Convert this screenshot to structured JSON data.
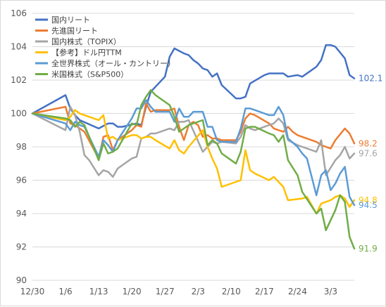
{
  "chart_data": {
    "type": "line",
    "x_ticks": [
      "12/30",
      "1/6",
      "1/13",
      "1/20",
      "1/27",
      "2/3",
      "2/10",
      "2/17",
      "2/24",
      "3/3"
    ],
    "ylim": [
      90,
      106
    ],
    "y_ticks": [
      90,
      92,
      94,
      96,
      98,
      100,
      102,
      104,
      106
    ],
    "grid": "horizontal",
    "legend_position": "top-left",
    "series": [
      {
        "name": "国内リート",
        "color": "#4472c4",
        "end_label": "102.1",
        "points": [
          [
            0,
            100
          ],
          [
            7,
            101.1
          ],
          [
            8,
            100.3
          ],
          [
            9,
            99.9
          ],
          [
            10,
            99.6
          ],
          [
            14,
            99.1
          ],
          [
            16,
            99.4
          ],
          [
            17,
            99.4
          ],
          [
            18,
            99.2
          ],
          [
            19,
            99.2
          ],
          [
            22,
            99.4
          ],
          [
            23,
            99.3
          ],
          [
            24,
            100.4
          ],
          [
            25,
            101.3
          ],
          [
            28,
            102.2
          ],
          [
            29,
            103.4
          ],
          [
            30,
            103.9
          ],
          [
            32,
            103.6
          ],
          [
            33,
            103.5
          ],
          [
            34,
            103.2
          ],
          [
            35,
            103.0
          ],
          [
            36,
            102.7
          ],
          [
            37,
            102.6
          ],
          [
            38,
            102.2
          ],
          [
            39,
            102.4
          ],
          [
            40,
            101.7
          ],
          [
            43,
            100.9
          ],
          [
            44,
            100.9
          ],
          [
            45,
            101.0
          ],
          [
            46,
            101.8
          ],
          [
            49,
            102.3
          ],
          [
            50,
            102.4
          ],
          [
            52,
            102.4
          ],
          [
            53,
            102.4
          ],
          [
            54,
            102.2
          ],
          [
            56,
            102.3
          ],
          [
            57,
            102.2
          ],
          [
            60,
            102.8
          ],
          [
            61,
            103.2
          ],
          [
            62,
            104.1
          ],
          [
            63,
            104.1
          ],
          [
            64,
            104.0
          ],
          [
            66,
            103.3
          ],
          [
            67,
            102.3
          ],
          [
            68,
            102.1
          ]
        ]
      },
      {
        "name": "先進国リート",
        "color": "#ed7d31",
        "end_label": "98.2",
        "points": [
          [
            0,
            100
          ],
          [
            7,
            100.4
          ],
          [
            8,
            99.4
          ],
          [
            9,
            99.3
          ],
          [
            10,
            99.1
          ],
          [
            11,
            98.9
          ],
          [
            14,
            97.3
          ],
          [
            15,
            98.6
          ],
          [
            16,
            98.7
          ],
          [
            17,
            97.8
          ],
          [
            18,
            98.4
          ],
          [
            21,
            99.0
          ],
          [
            22,
            99.3
          ],
          [
            23,
            99.2
          ],
          [
            24,
            100.6
          ],
          [
            25,
            100.1
          ],
          [
            26,
            100.2
          ],
          [
            29,
            100.2
          ],
          [
            30,
            100.3
          ],
          [
            31,
            99.2
          ],
          [
            32,
            98.4
          ],
          [
            33,
            99.3
          ],
          [
            34,
            99.5
          ],
          [
            35,
            99.3
          ],
          [
            36,
            98.6
          ],
          [
            37,
            98.7
          ],
          [
            38,
            98.5
          ],
          [
            39,
            98.5
          ],
          [
            40,
            98.4
          ],
          [
            43,
            98.4
          ],
          [
            44,
            98.9
          ],
          [
            45,
            99.7
          ],
          [
            46,
            100.0
          ],
          [
            47,
            99.9
          ],
          [
            50,
            99.4
          ],
          [
            51,
            99.1
          ],
          [
            52,
            99.0
          ],
          [
            53,
            98.9
          ],
          [
            54,
            99.2
          ],
          [
            55,
            98.9
          ],
          [
            56,
            98.7
          ],
          [
            57,
            98.6
          ],
          [
            60,
            98.3
          ],
          [
            61,
            98.1
          ],
          [
            62,
            98.0
          ],
          [
            63,
            97.9
          ],
          [
            64,
            98.4
          ],
          [
            66,
            99.1
          ],
          [
            67,
            98.8
          ],
          [
            68,
            98.2
          ]
        ]
      },
      {
        "name": "国内株式（TOPIX）",
        "color": "#a5a5a5",
        "end_label": "97.6",
        "points": [
          [
            0,
            100
          ],
          [
            7,
            99.0
          ],
          [
            8,
            100.4
          ],
          [
            9,
            99.9
          ],
          [
            10,
            98.9
          ],
          [
            11,
            97.5
          ],
          [
            12,
            97.2
          ],
          [
            14,
            96.3
          ],
          [
            15,
            96.6
          ],
          [
            16,
            96.5
          ],
          [
            17,
            96.2
          ],
          [
            18,
            96.7
          ],
          [
            21,
            97.3
          ],
          [
            22,
            97.4
          ],
          [
            23,
            98.5
          ],
          [
            24,
            98.6
          ],
          [
            25,
            98.8
          ],
          [
            26,
            98.8
          ],
          [
            29,
            99.1
          ],
          [
            30,
            99.0
          ],
          [
            31,
            99.5
          ],
          [
            32,
            99.5
          ],
          [
            33,
            99.6
          ],
          [
            36,
            97.7
          ],
          [
            37,
            98.0
          ],
          [
            38,
            98.3
          ],
          [
            39,
            98.2
          ],
          [
            40,
            98.3
          ],
          [
            43,
            98.2
          ],
          [
            44,
            98.6
          ],
          [
            45,
            99.3
          ],
          [
            46,
            99.1
          ],
          [
            47,
            99.0
          ],
          [
            48,
            99.1
          ],
          [
            50,
            99.3
          ],
          [
            51,
            99.4
          ],
          [
            52,
            99.7
          ],
          [
            53,
            99.4
          ],
          [
            54,
            98.4
          ],
          [
            56,
            98.1
          ],
          [
            57,
            98.0
          ],
          [
            60,
            97.7
          ],
          [
            61,
            98.4
          ],
          [
            62,
            96.3
          ],
          [
            64,
            97.2
          ],
          [
            65,
            97.5
          ],
          [
            66,
            98.0
          ],
          [
            67,
            97.3
          ],
          [
            68,
            97.6
          ]
        ]
      },
      {
        "name": "【参考】ドル円TTM",
        "color": "#ffc000",
        "end_label": "94.8",
        "points": [
          [
            0,
            100
          ],
          [
            7,
            99.6
          ],
          [
            8,
            99.8
          ],
          [
            9,
            100.2
          ],
          [
            10,
            100.0
          ],
          [
            11,
            99.9
          ],
          [
            14,
            99.6
          ],
          [
            15,
            99.9
          ],
          [
            16,
            98.5
          ],
          [
            17,
            98.6
          ],
          [
            18,
            98.4
          ],
          [
            21,
            98.7
          ],
          [
            22,
            98.7
          ],
          [
            23,
            98.5
          ],
          [
            24,
            98.6
          ],
          [
            25,
            98.6
          ],
          [
            26,
            98.4
          ],
          [
            29,
            97.9
          ],
          [
            30,
            98.4
          ],
          [
            31,
            97.8
          ],
          [
            32,
            97.6
          ],
          [
            33,
            98.0
          ],
          [
            36,
            99.0
          ],
          [
            37,
            98.0
          ],
          [
            38,
            97.3
          ],
          [
            39,
            96.7
          ],
          [
            40,
            95.6
          ],
          [
            44,
            96.0
          ],
          [
            45,
            97.8
          ],
          [
            46,
            96.6
          ],
          [
            47,
            96.4
          ],
          [
            50,
            96.0
          ],
          [
            51,
            96.2
          ],
          [
            52,
            95.9
          ],
          [
            53,
            95.6
          ],
          [
            54,
            94.8
          ],
          [
            57,
            94.9
          ],
          [
            58,
            95.0
          ],
          [
            60,
            94.0
          ],
          [
            61,
            94.6
          ],
          [
            63,
            94.8
          ],
          [
            64,
            95.0
          ],
          [
            65,
            95.1
          ],
          [
            66,
            94.9
          ],
          [
            67,
            94.4
          ],
          [
            68,
            94.8
          ]
        ]
      },
      {
        "name": "全世界株式（オール・カントリー）",
        "color": "#5b9bd5",
        "end_label": "94.5",
        "points": [
          [
            0,
            100
          ],
          [
            7,
            99.4
          ],
          [
            8,
            99.0
          ],
          [
            9,
            99.5
          ],
          [
            10,
            99.3
          ],
          [
            11,
            99.2
          ],
          [
            14,
            97.4
          ],
          [
            15,
            98.4
          ],
          [
            16,
            98.1
          ],
          [
            17,
            97.7
          ],
          [
            18,
            98.4
          ],
          [
            21,
            99.7
          ],
          [
            22,
            100.3
          ],
          [
            23,
            100.3
          ],
          [
            24,
            100.8
          ],
          [
            25,
            100.4
          ],
          [
            26,
            100.1
          ],
          [
            29,
            100.1
          ],
          [
            30,
            99.5
          ],
          [
            31,
            100.3
          ],
          [
            32,
            99.8
          ],
          [
            33,
            99.8
          ],
          [
            34,
            100.1
          ],
          [
            35,
            100.1
          ],
          [
            36,
            100.1
          ],
          [
            37,
            99.2
          ],
          [
            38,
            99.2
          ],
          [
            39,
            98.4
          ],
          [
            40,
            98.3
          ],
          [
            43,
            98.3
          ],
          [
            44,
            99.1
          ],
          [
            45,
            100.3
          ],
          [
            46,
            100.3
          ],
          [
            47,
            100.2
          ],
          [
            49,
            100.0
          ],
          [
            50,
            99.9
          ],
          [
            51,
            99.9
          ],
          [
            52,
            100.4
          ],
          [
            53,
            99.9
          ],
          [
            54,
            98.5
          ],
          [
            56,
            98.0
          ],
          [
            57,
            97.6
          ],
          [
            58,
            97.3
          ],
          [
            60,
            95.1
          ],
          [
            61,
            96.3
          ],
          [
            62,
            96.6
          ],
          [
            63,
            95.4
          ],
          [
            64,
            95.8
          ],
          [
            65,
            96.4
          ],
          [
            66,
            96.8
          ],
          [
            67,
            95.0
          ],
          [
            68,
            94.5
          ]
        ]
      },
      {
        "name": "米国株式（S&P500）",
        "color": "#70ad47",
        "end_label": "91.9",
        "points": [
          [
            0,
            100
          ],
          [
            7,
            99.7
          ],
          [
            8,
            99.6
          ],
          [
            9,
            99.2
          ],
          [
            10,
            99.5
          ],
          [
            11,
            99.3
          ],
          [
            14,
            97.2
          ],
          [
            15,
            98.2
          ],
          [
            16,
            97.6
          ],
          [
            17,
            97.7
          ],
          [
            18,
            97.9
          ],
          [
            21,
            99.4
          ],
          [
            22,
            99.3
          ],
          [
            23,
            100.5
          ],
          [
            24,
            101.0
          ],
          [
            25,
            101.4
          ],
          [
            26,
            101.1
          ],
          [
            29,
            100.5
          ],
          [
            30,
            99.8
          ],
          [
            31,
            98.9
          ],
          [
            32,
            99.1
          ],
          [
            33,
            99.3
          ],
          [
            36,
            99.6
          ],
          [
            37,
            98.1
          ],
          [
            38,
            98.4
          ],
          [
            39,
            98.2
          ],
          [
            40,
            97.6
          ],
          [
            43,
            97.0
          ],
          [
            44,
            97.7
          ],
          [
            45,
            99.1
          ],
          [
            46,
            99.2
          ],
          [
            47,
            99.2
          ],
          [
            50,
            98.8
          ],
          [
            51,
            98.7
          ],
          [
            52,
            98.3
          ],
          [
            53,
            98.7
          ],
          [
            54,
            97.2
          ],
          [
            56,
            96.3
          ],
          [
            57,
            95.3
          ],
          [
            60,
            94.0
          ],
          [
            61,
            94.3
          ],
          [
            62,
            93.0
          ],
          [
            64,
            94.2
          ],
          [
            65,
            95.1
          ],
          [
            66,
            94.7
          ],
          [
            67,
            92.6
          ],
          [
            68,
            91.9
          ]
        ]
      }
    ]
  }
}
